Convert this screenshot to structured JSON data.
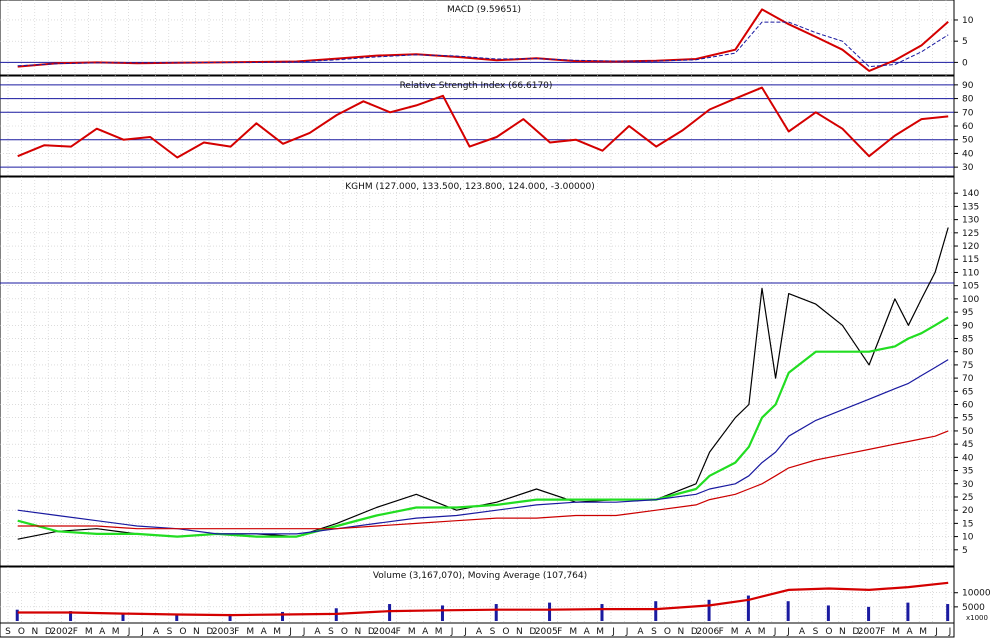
{
  "chart_data": [
    {
      "type": "line",
      "title": "MACD (9.59651)",
      "ylim": [
        -2.5,
        14
      ],
      "yticks": [
        "10",
        "5",
        "0"
      ],
      "reference_lines": [
        0
      ],
      "series_colors": [
        "#d40000",
        "#1a1aa0"
      ],
      "approximate": true,
      "x": [
        "2001-09",
        "2001-12",
        "2002-03",
        "2002-06",
        "2002-09",
        "2002-12",
        "2003-03",
        "2003-06",
        "2003-09",
        "2003-12",
        "2004-03",
        "2004-06",
        "2004-09",
        "2004-12",
        "2005-03",
        "2005-06",
        "2005-09",
        "2005-12",
        "2006-03",
        "2006-05",
        "2006-07",
        "2006-09",
        "2006-11",
        "2007-01",
        "2007-03",
        "2007-05",
        "2007-07"
      ],
      "series": [
        {
          "values": [
            -1.0,
            -0.2,
            0.0,
            -0.2,
            -0.1,
            0.0,
            0.1,
            0.2,
            0.9,
            1.6,
            1.9,
            1.3,
            0.5,
            1.0,
            0.3,
            0.2,
            0.4,
            0.8,
            3.0,
            12.5,
            9.0,
            6.0,
            3.0,
            -2.0,
            0.5,
            4.0,
            9.6
          ]
        },
        {
          "values": [
            -0.8,
            -0.3,
            -0.1,
            -0.1,
            -0.1,
            0.0,
            0.0,
            0.1,
            0.6,
            1.3,
            1.8,
            1.5,
            0.8,
            0.9,
            0.5,
            0.3,
            0.3,
            0.6,
            2.2,
            9.5,
            9.5,
            7.0,
            5.0,
            -1.0,
            -0.5,
            2.5,
            6.5
          ]
        }
      ]
    },
    {
      "type": "line",
      "title": "Relative Strength Index (66.6170)",
      "ylim": [
        25,
        95
      ],
      "yticks": [
        "90",
        "80",
        "70",
        "60",
        "50",
        "40",
        "30"
      ],
      "reference_lines": [
        90,
        80,
        70,
        50,
        30
      ],
      "series_colors": [
        "#d40000"
      ],
      "approximate": true,
      "x": [
        "2001-09",
        "2001-11",
        "2002-01",
        "2002-03",
        "2002-05",
        "2002-07",
        "2002-09",
        "2002-11",
        "2003-01",
        "2003-03",
        "2003-05",
        "2003-07",
        "2003-09",
        "2003-11",
        "2004-01",
        "2004-03",
        "2004-05",
        "2004-07",
        "2004-09",
        "2004-11",
        "2005-01",
        "2005-03",
        "2005-05",
        "2005-07",
        "2005-09",
        "2005-11",
        "2006-01",
        "2006-03",
        "2006-05",
        "2006-07",
        "2006-09",
        "2006-11",
        "2007-01",
        "2007-03",
        "2007-05",
        "2007-07"
      ],
      "series": [
        {
          "values": [
            38,
            46,
            45,
            58,
            50,
            52,
            37,
            48,
            45,
            62,
            47,
            55,
            68,
            78,
            70,
            75,
            82,
            45,
            52,
            65,
            48,
            50,
            42,
            60,
            45,
            57,
            72,
            80,
            88,
            56,
            70,
            58,
            38,
            53,
            65,
            67
          ]
        }
      ]
    },
    {
      "type": "line",
      "title": "KGHM (127.000, 133.500, 123.800, 124.000, -3.00000)",
      "ylim": [
        0,
        145
      ],
      "yticks": [
        "140",
        "135",
        "130",
        "125",
        "120",
        "115",
        "110",
        "105",
        "100",
        "95",
        "90",
        "85",
        "80",
        "75",
        "70",
        "65",
        "60",
        "55",
        "50",
        "45",
        "40",
        "35",
        "30",
        "25",
        "20",
        "15",
        "10",
        "5"
      ],
      "reference_lines": [
        106
      ],
      "series_colors": [
        "#000000",
        "#22dd22",
        "#1a1aa0",
        "#cc0000"
      ],
      "approximate": true,
      "x": [
        "2001-09",
        "2001-12",
        "2002-03",
        "2002-06",
        "2002-09",
        "2002-12",
        "2003-03",
        "2003-06",
        "2003-09",
        "2003-12",
        "2004-03",
        "2004-06",
        "2004-09",
        "2004-12",
        "2005-03",
        "2005-06",
        "2005-09",
        "2005-12",
        "2006-01",
        "2006-03",
        "2006-04",
        "2006-05",
        "2006-06",
        "2006-07",
        "2006-09",
        "2006-11",
        "2007-01",
        "2007-03",
        "2007-04",
        "2007-05",
        "2007-06",
        "2007-07"
      ],
      "series": [
        {
          "values": [
            9,
            12,
            13,
            11,
            10,
            11,
            11,
            10,
            15,
            21,
            26,
            20,
            23,
            28,
            23,
            24,
            24,
            30,
            42,
            55,
            60,
            104,
            70,
            102,
            98,
            90,
            75,
            100,
            90,
            100,
            110,
            127
          ]
        },
        {
          "values": [
            16,
            12,
            11,
            11,
            10,
            11,
            10,
            10,
            14,
            18,
            21,
            21,
            22,
            24,
            24,
            24,
            24,
            28,
            33,
            38,
            44,
            55,
            60,
            72,
            80,
            80,
            80,
            82,
            85,
            87,
            90,
            93
          ]
        },
        {
          "values": [
            20,
            18,
            16,
            14,
            13,
            11,
            11,
            11,
            13,
            15,
            17,
            18,
            20,
            22,
            23,
            23,
            24,
            26,
            28,
            30,
            33,
            38,
            42,
            48,
            54,
            58,
            62,
            66,
            68,
            71,
            74,
            77
          ]
        },
        {
          "values": [
            14,
            14,
            14,
            13,
            13,
            13,
            13,
            13,
            13,
            14,
            15,
            16,
            17,
            17,
            18,
            18,
            20,
            22,
            24,
            26,
            28,
            30,
            33,
            36,
            39,
            41,
            43,
            45,
            46,
            47,
            48,
            50
          ]
        }
      ]
    },
    {
      "type": "bar",
      "title": "Volume (3,167,070), Moving Average (107,764)",
      "ylim": [
        0,
        14500
      ],
      "yticks": [
        "10000",
        "5000"
      ],
      "unit_label": "x1000",
      "series_colors": [
        "#1a1aa0",
        "#d40000"
      ],
      "approximate": true,
      "x": [
        "2001-09",
        "2002-01",
        "2002-05",
        "2002-09",
        "2003-01",
        "2003-05",
        "2003-09",
        "2004-01",
        "2004-05",
        "2004-09",
        "2005-01",
        "2005-05",
        "2005-09",
        "2006-01",
        "2006-04",
        "2006-07",
        "2006-10",
        "2007-01",
        "2007-04",
        "2007-07"
      ],
      "series": [
        {
          "values": [
            4000,
            3500,
            2800,
            2500,
            2500,
            3200,
            4500,
            6000,
            5500,
            6000,
            6500,
            6000,
            7000,
            7500,
            9000,
            7000,
            5500,
            5000,
            6500,
            6000
          ]
        },
        {
          "values": [
            3000,
            3000,
            2600,
            2300,
            2100,
            2300,
            2500,
            3500,
            3800,
            4000,
            4000,
            4200,
            4200,
            5500,
            7500,
            11000,
            11500,
            11000,
            12000,
            13500
          ]
        }
      ]
    }
  ],
  "x_axis_labels": [
    "S",
    "O",
    "N",
    "D",
    "2002",
    "F",
    "M",
    "A",
    "M",
    "J",
    "J",
    "A",
    "S",
    "O",
    "N",
    "D",
    "2003",
    "F",
    "M",
    "A",
    "M",
    "J",
    "J",
    "A",
    "S",
    "O",
    "N",
    "D",
    "2004",
    "F",
    "M",
    "A",
    "M",
    "J",
    "J",
    "A",
    "S",
    "O",
    "N",
    "D",
    "2005",
    "F",
    "M",
    "A",
    "M",
    "J",
    "J",
    "A",
    "S",
    "O",
    "N",
    "D",
    "2006",
    "F",
    "M",
    "A",
    "M",
    "J",
    "J",
    "A",
    "S",
    "O",
    "N",
    "D",
    "2007",
    "F",
    "M",
    "A",
    "M",
    "J",
    "J"
  ]
}
